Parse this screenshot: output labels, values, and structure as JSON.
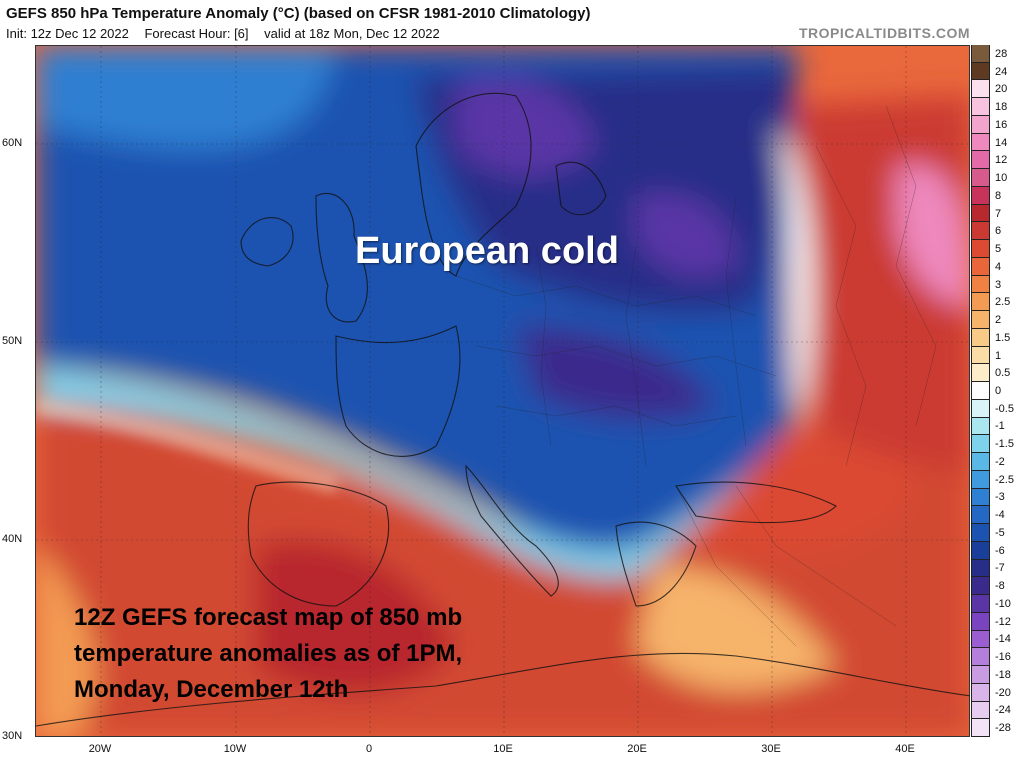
{
  "header": {
    "title": "GEFS 850 hPa Temperature Anomaly (°C) (based on CFSR 1981-2010 Climatology)",
    "init": "Init: 12z Dec 12 2022",
    "forecast_hour": "Forecast Hour: [6]",
    "valid": "valid at 18z Mon, Dec 12 2022",
    "credit": "TROPICALTIDBITS.COM"
  },
  "annotations": {
    "cold": "European cold",
    "forecast_line1": "12Z GEFS forecast map of 850 mb",
    "forecast_line2": "temperature anomalies as of 1PM,",
    "forecast_line3": "Monday, December 12th"
  },
  "axes": {
    "lat_labels": [
      "60N",
      "50N",
      "40N",
      "30N"
    ],
    "lon_labels": [
      "20W",
      "10W",
      "0",
      "10E",
      "20E",
      "30E",
      "40E"
    ]
  },
  "colorbar": {
    "levels": [
      "28",
      "24",
      "20",
      "18",
      "16",
      "14",
      "12",
      "10",
      "8",
      "7",
      "6",
      "5",
      "4",
      "3",
      "2.5",
      "2",
      "1.5",
      "1",
      "0.5",
      "0",
      "-0.5",
      "-1",
      "-1.5",
      "-2",
      "-2.5",
      "-3",
      "-4",
      "-5",
      "-6",
      "-7",
      "-8",
      "-10",
      "-12",
      "-14",
      "-16",
      "-18",
      "-20",
      "-24",
      "-28"
    ],
    "colors": [
      "#7a5a3c",
      "#5e3a22",
      "#fbe0ee",
      "#f7c3de",
      "#f3a4cc",
      "#ee88bd",
      "#e26aa6",
      "#d65a8c",
      "#c7335a",
      "#b8282f",
      "#cb3a32",
      "#dc4a32",
      "#e8663a",
      "#ef8142",
      "#f39b52",
      "#f6b36a",
      "#f8c987",
      "#fadca7",
      "#fcecca",
      "#ffffff",
      "#d8f4f6",
      "#a9e6f0",
      "#7fd2ec",
      "#5ab8e6",
      "#3f9ade",
      "#2f7fd2",
      "#2468c3",
      "#1c53b0",
      "#1a3f9a",
      "#262e88",
      "#3a2a8c",
      "#5a35a6",
      "#7a44c0",
      "#9a5ed0",
      "#b37fda",
      "#c99be2",
      "#d8b4e8",
      "#e6cdef",
      "#f2e4f6"
    ]
  }
}
